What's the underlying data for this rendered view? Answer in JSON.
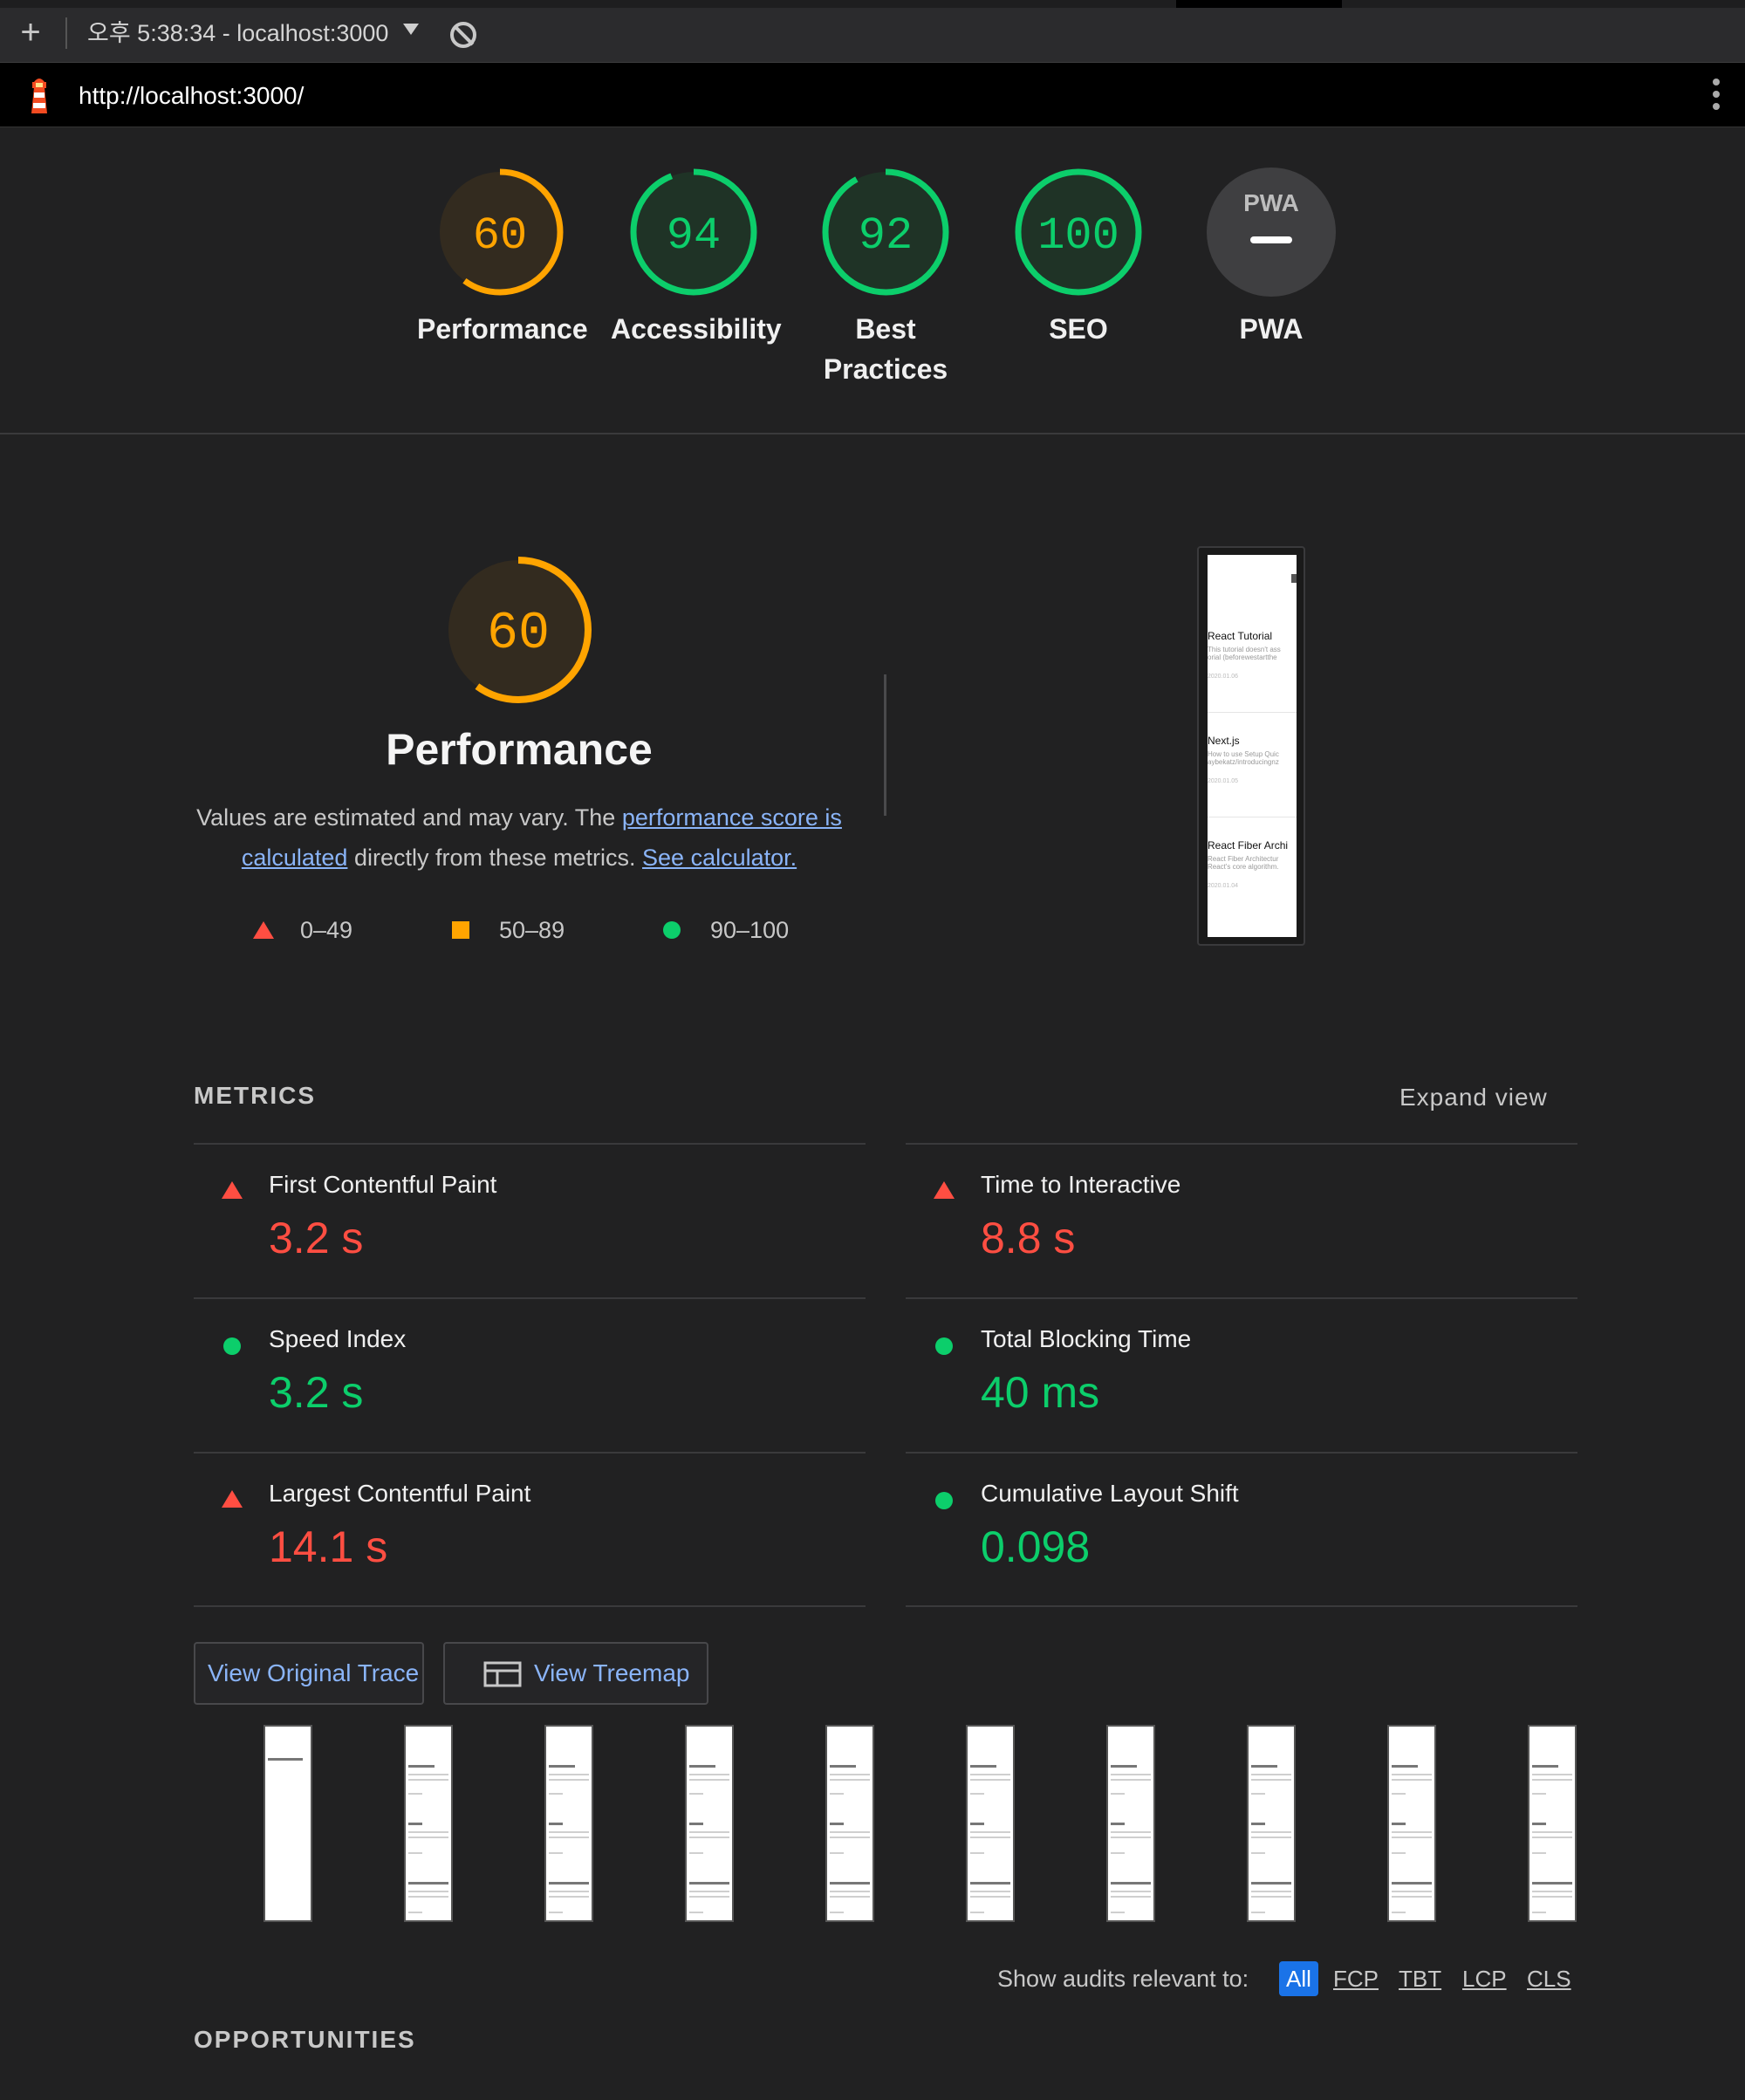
{
  "toolbar": {
    "new_label": "+",
    "session": "오후 5:38:34 - localhost:3000"
  },
  "urlbar": {
    "url": "http://localhost:3000/"
  },
  "colors": {
    "fail": "#ff4e42",
    "average": "#ffa400",
    "pass": "#0cce6b",
    "link": "#8ab4f8",
    "active_filter": "#1a73e8"
  },
  "gauges": [
    {
      "score": "60",
      "label": "Performance",
      "status": "average"
    },
    {
      "score": "94",
      "label": "Accessibility",
      "status": "pass"
    },
    {
      "score": "92",
      "label": "Best Practices",
      "status": "pass"
    },
    {
      "score": "100",
      "label": "SEO",
      "status": "pass"
    },
    {
      "score": "",
      "label": "PWA",
      "badge": "PWA",
      "status": "na"
    }
  ],
  "performance": {
    "score": "60",
    "title": "Performance",
    "desc_prefix": "Values are estimated and may vary. The ",
    "link_score": "performance score is calculated",
    "desc_middle": " directly from these metrics. ",
    "link_calc": "See calculator.",
    "legend": [
      "0–49",
      "50–89",
      "90–100"
    ]
  },
  "final_screenshot": {
    "items": [
      {
        "title": "React Tutorial",
        "desc1": "This tutorial doesn't ass",
        "desc2": "orial (beforewestartthe",
        "date": "2020.01.06"
      },
      {
        "title": "Next.js",
        "desc1": "How to use Setup Quic",
        "desc2": "aybekatz/introducingnz",
        "date": "2020.01.05"
      },
      {
        "title": "React Fiber Archi",
        "desc1": "React Fiber Architectur",
        "desc2": "React's core algorithm.",
        "date": "2020.01.04"
      }
    ]
  },
  "metrics": {
    "heading": "METRICS",
    "expand": "Expand view",
    "items": [
      {
        "name": "First Contentful Paint",
        "value": "3.2 s",
        "status": "fail"
      },
      {
        "name": "Time to Interactive",
        "value": "8.8 s",
        "status": "fail"
      },
      {
        "name": "Speed Index",
        "value": "3.2 s",
        "status": "pass"
      },
      {
        "name": "Total Blocking Time",
        "value": "40 ms",
        "status": "pass"
      },
      {
        "name": "Largest Contentful Paint",
        "value": "14.1 s",
        "status": "fail"
      },
      {
        "name": "Cumulative Layout Shift",
        "value": "0.098",
        "status": "pass"
      }
    ]
  },
  "buttons": {
    "trace": "View Original Trace",
    "treemap": "View Treemap"
  },
  "filmstrip_frames": 10,
  "audits": {
    "label": "Show audits relevant to:",
    "filters": [
      "All",
      "FCP",
      "TBT",
      "LCP",
      "CLS"
    ],
    "active": "All"
  },
  "opportunities": {
    "heading": "OPPORTUNITIES"
  }
}
